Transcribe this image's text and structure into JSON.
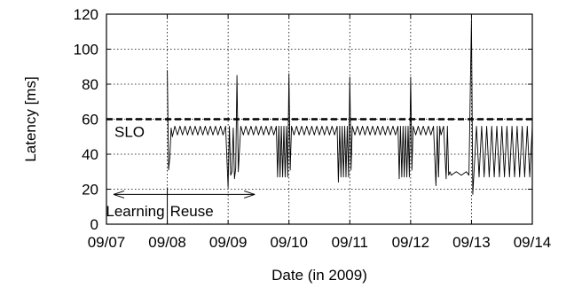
{
  "chart_data": {
    "type": "line",
    "title": "",
    "xlabel": "Date (in 2009)",
    "ylabel": "Latency [ms]",
    "x_tick_labels": [
      "09/07",
      "09/08",
      "09/09",
      "09/10",
      "09/11",
      "09/12",
      "09/13",
      "09/14"
    ],
    "xlim": [
      "09/07",
      "09/14"
    ],
    "ylim": [
      0,
      120
    ],
    "y_ticks": [
      0,
      20,
      40,
      60,
      80,
      100,
      120
    ],
    "grid": true,
    "slo": {
      "label": "SLO",
      "value": 60
    },
    "phases": {
      "learning_label": "Learning",
      "reuse_label": "Reuse",
      "boundary_date": "09/08",
      "learning_start": "09/07",
      "reuse_end": "09/09"
    },
    "series": [
      {
        "color": "#000000",
        "points": [
          [
            "09/08 00:00",
            88
          ],
          [
            "09/08 00:30",
            31
          ],
          [
            "09/08 01:00",
            38
          ],
          [
            "09/08 01:30",
            55
          ],
          [
            "09/08 02:00",
            50
          ],
          [
            "09/08 03:00",
            56
          ],
          [
            "09/08 04:00",
            51
          ],
          [
            "09/08 05:00",
            56
          ],
          [
            "09/08 06:00",
            51
          ],
          [
            "09/08 07:00",
            56
          ],
          [
            "09/08 08:00",
            51
          ],
          [
            "09/08 09:00",
            56
          ],
          [
            "09/08 10:00",
            51
          ],
          [
            "09/08 11:00",
            56
          ],
          [
            "09/08 12:00",
            51
          ],
          [
            "09/08 13:00",
            56
          ],
          [
            "09/08 14:00",
            51
          ],
          [
            "09/08 15:00",
            56
          ],
          [
            "09/08 16:00",
            51
          ],
          [
            "09/08 17:00",
            56
          ],
          [
            "09/08 18:00",
            51
          ],
          [
            "09/08 19:00",
            56
          ],
          [
            "09/08 20:00",
            51
          ],
          [
            "09/08 21:00",
            56
          ],
          [
            "09/08 22:00",
            51
          ],
          [
            "09/08 23:00",
            56
          ],
          [
            "09/09 00:00",
            21
          ],
          [
            "09/09 00:30",
            56
          ],
          [
            "09/09 01:00",
            28
          ],
          [
            "09/09 01:30",
            30
          ],
          [
            "09/09 02:00",
            55
          ],
          [
            "09/09 02:30",
            26
          ],
          [
            "09/09 03:00",
            32
          ],
          [
            "09/09 03:30",
            85
          ],
          [
            "09/09 04:00",
            30
          ],
          [
            "09/09 05:00",
            56
          ],
          [
            "09/09 06:00",
            51
          ],
          [
            "09/09 07:00",
            56
          ],
          [
            "09/09 08:00",
            51
          ],
          [
            "09/09 09:00",
            56
          ],
          [
            "09/09 10:00",
            51
          ],
          [
            "09/09 11:00",
            56
          ],
          [
            "09/09 12:00",
            51
          ],
          [
            "09/09 13:00",
            56
          ],
          [
            "09/09 14:00",
            51
          ],
          [
            "09/09 15:00",
            56
          ],
          [
            "09/09 16:00",
            51
          ],
          [
            "09/09 17:00",
            56
          ],
          [
            "09/09 18:00",
            51
          ],
          [
            "09/09 19:00",
            56
          ],
          [
            "09/09 19:30",
            27
          ],
          [
            "09/09 20:00",
            56
          ],
          [
            "09/09 20:30",
            27
          ],
          [
            "09/09 21:00",
            56
          ],
          [
            "09/09 21:30",
            27
          ],
          [
            "09/09 22:00",
            56
          ],
          [
            "09/09 22:30",
            27
          ],
          [
            "09/09 23:00",
            56
          ],
          [
            "09/09 23:30",
            27
          ],
          [
            "09/10 00:00",
            86
          ],
          [
            "09/10 00:30",
            31
          ],
          [
            "09/10 01:00",
            56
          ],
          [
            "09/10 02:00",
            51
          ],
          [
            "09/10 03:00",
            56
          ],
          [
            "09/10 04:00",
            51
          ],
          [
            "09/10 05:00",
            56
          ],
          [
            "09/10 06:00",
            51
          ],
          [
            "09/10 07:00",
            56
          ],
          [
            "09/10 08:00",
            51
          ],
          [
            "09/10 09:00",
            56
          ],
          [
            "09/10 10:00",
            51
          ],
          [
            "09/10 11:00",
            56
          ],
          [
            "09/10 12:00",
            51
          ],
          [
            "09/10 13:00",
            56
          ],
          [
            "09/10 14:00",
            51
          ],
          [
            "09/10 15:00",
            56
          ],
          [
            "09/10 16:00",
            51
          ],
          [
            "09/10 17:00",
            56
          ],
          [
            "09/10 18:00",
            51
          ],
          [
            "09/10 19:00",
            56
          ],
          [
            "09/10 19:30",
            24
          ],
          [
            "09/10 20:00",
            56
          ],
          [
            "09/10 20:30",
            27
          ],
          [
            "09/10 21:00",
            56
          ],
          [
            "09/10 21:30",
            27
          ],
          [
            "09/10 22:00",
            56
          ],
          [
            "09/10 22:30",
            27
          ],
          [
            "09/10 23:00",
            56
          ],
          [
            "09/10 23:30",
            27
          ],
          [
            "09/11 00:00",
            84
          ],
          [
            "09/11 00:30",
            31
          ],
          [
            "09/11 01:00",
            56
          ],
          [
            "09/11 02:00",
            51
          ],
          [
            "09/11 03:00",
            56
          ],
          [
            "09/11 04:00",
            51
          ],
          [
            "09/11 05:00",
            56
          ],
          [
            "09/11 06:00",
            51
          ],
          [
            "09/11 07:00",
            56
          ],
          [
            "09/11 08:00",
            51
          ],
          [
            "09/11 09:00",
            56
          ],
          [
            "09/11 10:00",
            51
          ],
          [
            "09/11 11:00",
            56
          ],
          [
            "09/11 12:00",
            51
          ],
          [
            "09/11 13:00",
            56
          ],
          [
            "09/11 14:00",
            51
          ],
          [
            "09/11 15:00",
            56
          ],
          [
            "09/11 16:00",
            51
          ],
          [
            "09/11 17:00",
            56
          ],
          [
            "09/11 18:00",
            51
          ],
          [
            "09/11 19:00",
            56
          ],
          [
            "09/11 19:30",
            26
          ],
          [
            "09/11 20:00",
            56
          ],
          [
            "09/11 20:30",
            27
          ],
          [
            "09/11 21:00",
            56
          ],
          [
            "09/11 21:30",
            27
          ],
          [
            "09/11 22:00",
            56
          ],
          [
            "09/11 22:30",
            27
          ],
          [
            "09/11 23:00",
            56
          ],
          [
            "09/11 23:30",
            27
          ],
          [
            "09/12 00:00",
            84
          ],
          [
            "09/12 00:30",
            31
          ],
          [
            "09/12 01:00",
            56
          ],
          [
            "09/12 02:00",
            51
          ],
          [
            "09/12 03:00",
            56
          ],
          [
            "09/12 04:00",
            51
          ],
          [
            "09/12 05:00",
            56
          ],
          [
            "09/12 06:00",
            51
          ],
          [
            "09/12 07:00",
            56
          ],
          [
            "09/12 08:00",
            51
          ],
          [
            "09/12 09:00",
            56
          ],
          [
            "09/12 10:00",
            22
          ],
          [
            "09/12 10:30",
            56
          ],
          [
            "09/12 11:00",
            27
          ],
          [
            "09/12 11:30",
            56
          ],
          [
            "09/12 12:00",
            51
          ],
          [
            "09/12 13:00",
            56
          ],
          [
            "09/12 14:00",
            26
          ],
          [
            "09/12 14:30",
            56
          ],
          [
            "09/12 15:00",
            28
          ],
          [
            "09/12 15:30",
            30
          ],
          [
            "09/12 16:00",
            28
          ],
          [
            "09/12 18:00",
            30
          ],
          [
            "09/12 20:00",
            28
          ],
          [
            "09/12 22:00",
            30
          ],
          [
            "09/12 23:00",
            28
          ],
          [
            "09/13 00:00",
            117
          ],
          [
            "09/13 00:30",
            17
          ],
          [
            "09/13 01:00",
            30
          ],
          [
            "09/13 02:00",
            56
          ],
          [
            "09/13 03:00",
            27
          ],
          [
            "09/13 04:00",
            56
          ],
          [
            "09/13 05:00",
            27
          ],
          [
            "09/13 06:00",
            56
          ],
          [
            "09/13 07:00",
            27
          ],
          [
            "09/13 08:00",
            56
          ],
          [
            "09/13 09:00",
            27
          ],
          [
            "09/13 10:00",
            56
          ],
          [
            "09/13 11:00",
            27
          ],
          [
            "09/13 12:00",
            56
          ],
          [
            "09/13 13:00",
            27
          ],
          [
            "09/13 14:00",
            56
          ],
          [
            "09/13 15:00",
            27
          ],
          [
            "09/13 16:00",
            56
          ],
          [
            "09/13 17:00",
            27
          ],
          [
            "09/13 18:00",
            56
          ],
          [
            "09/13 19:00",
            27
          ],
          [
            "09/13 20:00",
            56
          ],
          [
            "09/13 21:00",
            27
          ],
          [
            "09/13 22:00",
            56
          ],
          [
            "09/13 23:00",
            27
          ],
          [
            "09/13 23:59",
            56
          ]
        ]
      }
    ]
  }
}
